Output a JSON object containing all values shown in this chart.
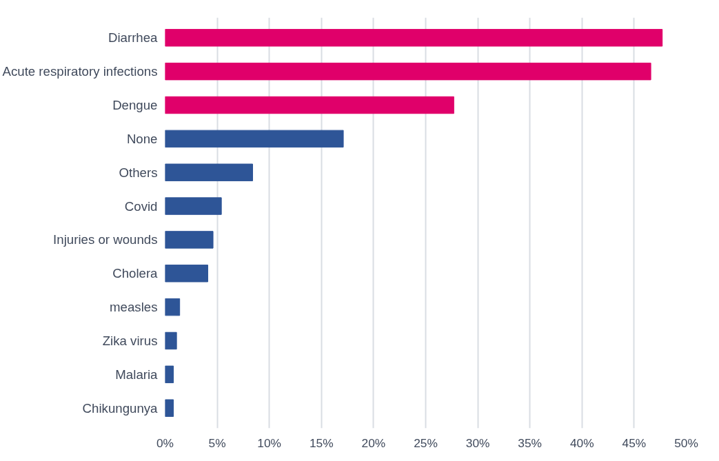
{
  "chart_data": {
    "type": "bar",
    "orientation": "horizontal",
    "categories": [
      "Diarrhea",
      "Acute respiratory infections",
      "Dengue",
      "None",
      "Others",
      "Covid",
      "Injuries or wounds",
      "Cholera",
      "measles",
      "Zika virus",
      "Malaria",
      "Chikungunya"
    ],
    "values": [
      47.7,
      46.6,
      27.7,
      17.1,
      8.4,
      5.4,
      4.6,
      4.1,
      1.4,
      1.1,
      0.8,
      0.8
    ],
    "colors": [
      "#e0006a",
      "#e0006a",
      "#e0006a",
      "#2e5597",
      "#2e5597",
      "#2e5597",
      "#2e5597",
      "#2e5597",
      "#2e5597",
      "#2e5597",
      "#2e5597",
      "#2e5597"
    ],
    "xlim": [
      0,
      50
    ],
    "xticks": [
      {
        "value": 0,
        "label": "0%"
      },
      {
        "value": 5,
        "label": "5%"
      },
      {
        "value": 10,
        "label": "10%"
      },
      {
        "value": 15,
        "label": "15%"
      },
      {
        "value": 20,
        "label": "20%"
      },
      {
        "value": 25,
        "label": "25%"
      },
      {
        "value": 30,
        "label": "30%"
      },
      {
        "value": 35,
        "label": "35%"
      },
      {
        "value": 40,
        "label": "40%"
      },
      {
        "value": 45,
        "label": "45%"
      },
      {
        "value": 50,
        "label": "50%"
      }
    ],
    "grid": "x"
  }
}
